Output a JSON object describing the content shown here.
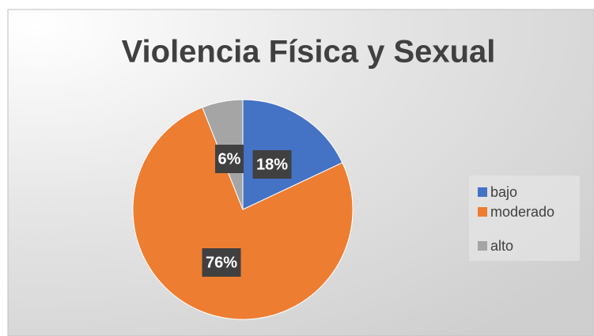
{
  "chart_data": {
    "type": "pie",
    "title": "Violencia Física y Sexual",
    "categories": [
      "bajo",
      "moderado",
      "alto"
    ],
    "values": [
      18,
      76,
      6
    ],
    "value_labels": [
      "18%",
      "76%",
      "6%"
    ],
    "colors": [
      "#4472c4",
      "#ed7d31",
      "#a5a5a5"
    ],
    "legend": "right"
  }
}
